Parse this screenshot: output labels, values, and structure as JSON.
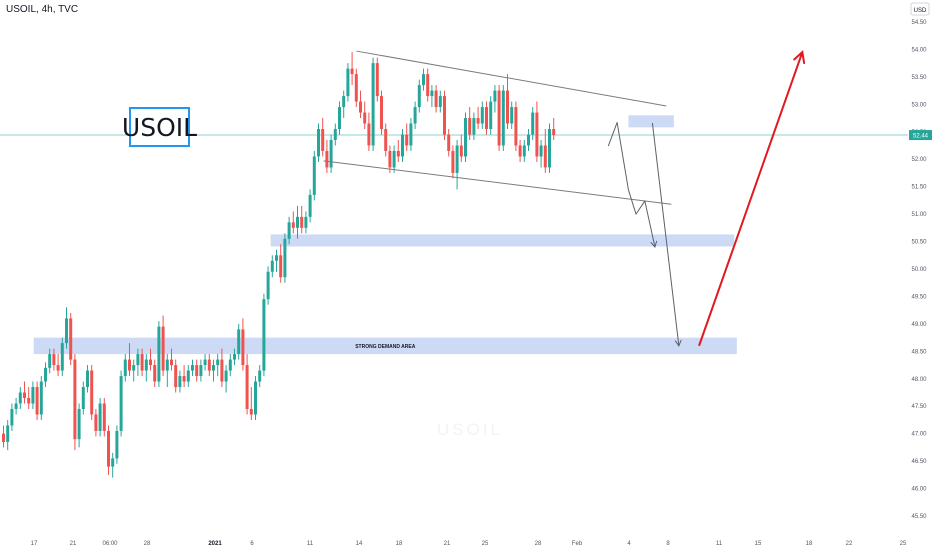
{
  "header": {
    "symbol_label": "USOIL, 4h, TVC"
  },
  "watermark": {
    "text": "USOIL"
  },
  "colors": {
    "up": "#26a69a",
    "down": "#ef5350",
    "zone": "#c6d6f5",
    "zone_dark": "#b7cbf3",
    "trendline": "#7b7b7b",
    "arrow_gray": "#5d606b",
    "arrow_red": "#e0191f",
    "price_line": "#8fd3cb",
    "price_badge": "#26a69a",
    "axis_text": "#505561"
  },
  "chart_data": {
    "type": "candlestick",
    "currency": "USD",
    "ylim": [
      45.1,
      54.9
    ],
    "y_ticks": [
      "54.50",
      "54.00",
      "53.50",
      "53.00",
      "52.50",
      "52.00",
      "51.50",
      "51.00",
      "50.50",
      "50.00",
      "49.50",
      "49.00",
      "48.50",
      "48.00",
      "47.50",
      "47.00",
      "46.50",
      "46.00",
      "45.50"
    ],
    "x_ticks": [
      "17",
      "21",
      "06:00",
      "28",
      "2021",
      "6",
      "11",
      "14",
      "18",
      "21",
      "25",
      "28",
      "Feb",
      "4",
      "8",
      "11",
      "15",
      "18",
      "22",
      "25"
    ],
    "last_price": "52.44",
    "bars_per_day": 6,
    "candles": [
      {
        "o": 47.0,
        "h": 47.15,
        "l": 46.75,
        "c": 46.85
      },
      {
        "o": 46.85,
        "h": 47.25,
        "l": 46.7,
        "c": 47.15
      },
      {
        "o": 47.15,
        "h": 47.55,
        "l": 47.05,
        "c": 47.45
      },
      {
        "o": 47.45,
        "h": 47.65,
        "l": 47.35,
        "c": 47.55
      },
      {
        "o": 47.55,
        "h": 47.85,
        "l": 47.45,
        "c": 47.75
      },
      {
        "o": 47.75,
        "h": 47.95,
        "l": 47.55,
        "c": 47.65
      },
      {
        "o": 47.65,
        "h": 47.85,
        "l": 47.45,
        "c": 47.55
      },
      {
        "o": 47.55,
        "h": 47.95,
        "l": 47.45,
        "c": 47.85
      },
      {
        "o": 47.85,
        "h": 47.95,
        "l": 47.25,
        "c": 47.35
      },
      {
        "o": 47.35,
        "h": 48.05,
        "l": 47.25,
        "c": 47.95
      },
      {
        "o": 47.95,
        "h": 48.3,
        "l": 47.85,
        "c": 48.2
      },
      {
        "o": 48.2,
        "h": 48.55,
        "l": 48.1,
        "c": 48.45
      },
      {
        "o": 48.45,
        "h": 48.55,
        "l": 48.15,
        "c": 48.25
      },
      {
        "o": 48.25,
        "h": 48.45,
        "l": 48.05,
        "c": 48.15
      },
      {
        "o": 48.15,
        "h": 48.75,
        "l": 48.05,
        "c": 48.65
      },
      {
        "o": 48.65,
        "h": 49.3,
        "l": 48.55,
        "c": 49.1
      },
      {
        "o": 49.1,
        "h": 49.2,
        "l": 48.25,
        "c": 48.35
      },
      {
        "o": 48.35,
        "h": 48.45,
        "l": 46.7,
        "c": 46.9
      },
      {
        "o": 46.9,
        "h": 47.55,
        "l": 46.75,
        "c": 47.45
      },
      {
        "o": 47.45,
        "h": 47.95,
        "l": 47.35,
        "c": 47.85
      },
      {
        "o": 47.85,
        "h": 48.25,
        "l": 47.75,
        "c": 48.15
      },
      {
        "o": 48.15,
        "h": 48.25,
        "l": 47.25,
        "c": 47.35
      },
      {
        "o": 47.35,
        "h": 47.45,
        "l": 46.95,
        "c": 47.05
      },
      {
        "o": 47.05,
        "h": 47.65,
        "l": 46.95,
        "c": 47.55
      },
      {
        "o": 47.55,
        "h": 47.65,
        "l": 46.95,
        "c": 47.05
      },
      {
        "o": 47.05,
        "h": 47.15,
        "l": 46.25,
        "c": 46.4
      },
      {
        "o": 46.4,
        "h": 46.65,
        "l": 46.2,
        "c": 46.55
      },
      {
        "o": 46.55,
        "h": 47.15,
        "l": 46.45,
        "c": 47.05
      },
      {
        "o": 47.05,
        "h": 48.15,
        "l": 46.95,
        "c": 48.05
      },
      {
        "o": 48.05,
        "h": 48.45,
        "l": 47.95,
        "c": 48.35
      },
      {
        "o": 48.35,
        "h": 48.65,
        "l": 48.05,
        "c": 48.15
      },
      {
        "o": 48.15,
        "h": 48.35,
        "l": 47.95,
        "c": 48.25
      },
      {
        "o": 48.25,
        "h": 48.55,
        "l": 48.05,
        "c": 48.45
      },
      {
        "o": 48.45,
        "h": 48.55,
        "l": 48.05,
        "c": 48.15
      },
      {
        "o": 48.15,
        "h": 48.45,
        "l": 47.95,
        "c": 48.35
      },
      {
        "o": 48.35,
        "h": 48.55,
        "l": 48.15,
        "c": 48.25
      },
      {
        "o": 48.25,
        "h": 48.35,
        "l": 47.85,
        "c": 47.95
      },
      {
        "o": 47.95,
        "h": 49.05,
        "l": 47.85,
        "c": 48.95
      },
      {
        "o": 48.95,
        "h": 49.15,
        "l": 48.05,
        "c": 48.15
      },
      {
        "o": 48.15,
        "h": 48.45,
        "l": 47.85,
        "c": 48.35
      },
      {
        "o": 48.35,
        "h": 48.55,
        "l": 48.15,
        "c": 48.25
      },
      {
        "o": 48.25,
        "h": 48.35,
        "l": 47.75,
        "c": 47.85
      },
      {
        "o": 47.85,
        "h": 48.15,
        "l": 47.75,
        "c": 48.05
      },
      {
        "o": 48.05,
        "h": 48.25,
        "l": 47.85,
        "c": 47.95
      },
      {
        "o": 47.95,
        "h": 48.25,
        "l": 47.85,
        "c": 48.15
      },
      {
        "o": 48.15,
        "h": 48.35,
        "l": 48.05,
        "c": 48.25
      },
      {
        "o": 48.25,
        "h": 48.35,
        "l": 47.95,
        "c": 48.05
      },
      {
        "o": 48.05,
        "h": 48.35,
        "l": 47.95,
        "c": 48.25
      },
      {
        "o": 48.25,
        "h": 48.45,
        "l": 48.15,
        "c": 48.35
      },
      {
        "o": 48.35,
        "h": 48.45,
        "l": 48.05,
        "c": 48.15
      },
      {
        "o": 48.15,
        "h": 48.35,
        "l": 47.95,
        "c": 48.25
      },
      {
        "o": 48.25,
        "h": 48.45,
        "l": 48.05,
        "c": 48.35
      },
      {
        "o": 48.35,
        "h": 48.55,
        "l": 47.85,
        "c": 47.95
      },
      {
        "o": 47.95,
        "h": 48.25,
        "l": 47.75,
        "c": 48.15
      },
      {
        "o": 48.15,
        "h": 48.45,
        "l": 48.05,
        "c": 48.35
      },
      {
        "o": 48.35,
        "h": 48.55,
        "l": 48.25,
        "c": 48.45
      },
      {
        "o": 48.45,
        "h": 49.0,
        "l": 48.35,
        "c": 48.9
      },
      {
        "o": 48.9,
        "h": 49.1,
        "l": 48.15,
        "c": 48.25
      },
      {
        "o": 48.25,
        "h": 48.45,
        "l": 47.35,
        "c": 47.45
      },
      {
        "o": 47.45,
        "h": 47.85,
        "l": 47.25,
        "c": 47.35
      },
      {
        "o": 47.35,
        "h": 48.05,
        "l": 47.25,
        "c": 47.95
      },
      {
        "o": 47.95,
        "h": 48.25,
        "l": 47.85,
        "c": 48.15
      },
      {
        "o": 48.15,
        "h": 49.55,
        "l": 48.05,
        "c": 49.45
      },
      {
        "o": 49.45,
        "h": 50.05,
        "l": 49.35,
        "c": 49.95
      },
      {
        "o": 49.95,
        "h": 50.25,
        "l": 49.85,
        "c": 50.15
      },
      {
        "o": 50.15,
        "h": 50.35,
        "l": 49.95,
        "c": 50.25
      },
      {
        "o": 50.25,
        "h": 50.45,
        "l": 49.75,
        "c": 49.85
      },
      {
        "o": 49.85,
        "h": 50.65,
        "l": 49.75,
        "c": 50.55
      },
      {
        "o": 50.55,
        "h": 50.95,
        "l": 50.45,
        "c": 50.85
      },
      {
        "o": 50.85,
        "h": 51.05,
        "l": 50.65,
        "c": 50.75
      },
      {
        "o": 50.75,
        "h": 51.15,
        "l": 50.55,
        "c": 50.95
      },
      {
        "o": 50.95,
        "h": 51.15,
        "l": 50.65,
        "c": 50.75
      },
      {
        "o": 50.75,
        "h": 51.05,
        "l": 50.65,
        "c": 50.95
      },
      {
        "o": 50.95,
        "h": 51.45,
        "l": 50.85,
        "c": 51.35
      },
      {
        "o": 51.35,
        "h": 52.15,
        "l": 51.25,
        "c": 52.05
      },
      {
        "o": 52.05,
        "h": 52.65,
        "l": 51.95,
        "c": 52.55
      },
      {
        "o": 52.55,
        "h": 52.75,
        "l": 52.05,
        "c": 52.15
      },
      {
        "o": 52.15,
        "h": 52.35,
        "l": 51.75,
        "c": 51.85
      },
      {
        "o": 51.85,
        "h": 52.45,
        "l": 51.75,
        "c": 52.35
      },
      {
        "o": 52.35,
        "h": 52.65,
        "l": 52.25,
        "c": 52.55
      },
      {
        "o": 52.55,
        "h": 53.05,
        "l": 52.45,
        "c": 52.95
      },
      {
        "o": 52.95,
        "h": 53.25,
        "l": 52.75,
        "c": 53.15
      },
      {
        "o": 53.15,
        "h": 53.75,
        "l": 53.05,
        "c": 53.65
      },
      {
        "o": 53.65,
        "h": 53.95,
        "l": 53.35,
        "c": 53.55
      },
      {
        "o": 53.55,
        "h": 53.65,
        "l": 52.95,
        "c": 53.05
      },
      {
        "o": 53.05,
        "h": 53.25,
        "l": 52.75,
        "c": 52.85
      },
      {
        "o": 52.85,
        "h": 53.05,
        "l": 52.55,
        "c": 52.65
      },
      {
        "o": 52.65,
        "h": 52.85,
        "l": 52.15,
        "c": 52.25
      },
      {
        "o": 52.25,
        "h": 53.85,
        "l": 52.15,
        "c": 53.75
      },
      {
        "o": 53.75,
        "h": 53.85,
        "l": 53.05,
        "c": 53.15
      },
      {
        "o": 53.15,
        "h": 53.25,
        "l": 52.45,
        "c": 52.55
      },
      {
        "o": 52.55,
        "h": 52.65,
        "l": 52.05,
        "c": 52.15
      },
      {
        "o": 52.15,
        "h": 52.25,
        "l": 51.75,
        "c": 51.85
      },
      {
        "o": 51.85,
        "h": 52.25,
        "l": 51.75,
        "c": 52.15
      },
      {
        "o": 52.15,
        "h": 52.35,
        "l": 51.95,
        "c": 52.05
      },
      {
        "o": 52.05,
        "h": 52.55,
        "l": 51.95,
        "c": 52.45
      },
      {
        "o": 52.45,
        "h": 52.65,
        "l": 52.15,
        "c": 52.25
      },
      {
        "o": 52.25,
        "h": 52.75,
        "l": 52.15,
        "c": 52.65
      },
      {
        "o": 52.65,
        "h": 53.05,
        "l": 52.55,
        "c": 52.95
      },
      {
        "o": 52.95,
        "h": 53.45,
        "l": 52.85,
        "c": 53.35
      },
      {
        "o": 53.35,
        "h": 53.65,
        "l": 53.25,
        "c": 53.55
      },
      {
        "o": 53.55,
        "h": 53.65,
        "l": 53.05,
        "c": 53.15
      },
      {
        "o": 53.15,
        "h": 53.35,
        "l": 52.95,
        "c": 53.25
      },
      {
        "o": 53.25,
        "h": 53.35,
        "l": 52.85,
        "c": 52.95
      },
      {
        "o": 52.95,
        "h": 53.25,
        "l": 52.85,
        "c": 53.15
      },
      {
        "o": 53.15,
        "h": 53.25,
        "l": 52.35,
        "c": 52.45
      },
      {
        "o": 52.45,
        "h": 52.55,
        "l": 52.05,
        "c": 52.15
      },
      {
        "o": 52.15,
        "h": 52.25,
        "l": 51.65,
        "c": 51.75
      },
      {
        "o": 51.75,
        "h": 52.35,
        "l": 51.45,
        "c": 52.25
      },
      {
        "o": 52.25,
        "h": 52.45,
        "l": 51.95,
        "c": 52.05
      },
      {
        "o": 52.05,
        "h": 52.85,
        "l": 51.95,
        "c": 52.75
      },
      {
        "o": 52.75,
        "h": 52.95,
        "l": 52.35,
        "c": 52.45
      },
      {
        "o": 52.45,
        "h": 52.85,
        "l": 52.35,
        "c": 52.75
      },
      {
        "o": 52.75,
        "h": 52.95,
        "l": 52.55,
        "c": 52.65
      },
      {
        "o": 52.65,
        "h": 53.05,
        "l": 52.55,
        "c": 52.95
      },
      {
        "o": 52.95,
        "h": 53.05,
        "l": 52.45,
        "c": 52.55
      },
      {
        "o": 52.55,
        "h": 53.15,
        "l": 52.45,
        "c": 53.05
      },
      {
        "o": 53.05,
        "h": 53.35,
        "l": 52.85,
        "c": 53.25
      },
      {
        "o": 53.25,
        "h": 53.35,
        "l": 52.15,
        "c": 52.25
      },
      {
        "o": 52.25,
        "h": 53.35,
        "l": 52.15,
        "c": 53.25
      },
      {
        "o": 53.25,
        "h": 53.55,
        "l": 52.55,
        "c": 52.65
      },
      {
        "o": 52.65,
        "h": 53.05,
        "l": 52.55,
        "c": 52.95
      },
      {
        "o": 52.95,
        "h": 53.05,
        "l": 52.15,
        "c": 52.25
      },
      {
        "o": 52.25,
        "h": 52.35,
        "l": 51.95,
        "c": 52.05
      },
      {
        "o": 52.05,
        "h": 52.35,
        "l": 51.95,
        "c": 52.25
      },
      {
        "o": 52.25,
        "h": 52.55,
        "l": 52.15,
        "c": 52.45
      },
      {
        "o": 52.45,
        "h": 52.95,
        "l": 52.35,
        "c": 52.85
      },
      {
        "o": 52.85,
        "h": 53.05,
        "l": 51.95,
        "c": 52.05
      },
      {
        "o": 52.05,
        "h": 52.35,
        "l": 51.85,
        "c": 52.25
      },
      {
        "o": 52.25,
        "h": 52.55,
        "l": 51.75,
        "c": 51.85
      },
      {
        "o": 51.85,
        "h": 52.65,
        "l": 51.75,
        "c": 52.55
      },
      {
        "o": 52.55,
        "h": 52.75,
        "l": 52.35,
        "c": 52.44
      }
    ],
    "channel": {
      "upper": [
        [
          14.0,
          53.97
        ],
        [
          26.3,
          52.97
        ]
      ],
      "lower": [
        [
          12.7,
          51.97
        ],
        [
          26.5,
          51.18
        ]
      ]
    },
    "zones": [
      {
        "name": "resistance-zone",
        "x0": 24.8,
        "x1": 26.6,
        "y0": 52.58,
        "y1": 52.8,
        "label": ""
      },
      {
        "name": "support-zone",
        "x0": 10.6,
        "x1": 29.0,
        "y0": 50.41,
        "y1": 50.63,
        "label": ""
      },
      {
        "name": "demand-zone",
        "x0": 1.2,
        "x1": 29.1,
        "y0": 48.45,
        "y1": 48.75,
        "label": "STRONG DEMAND AREA"
      }
    ],
    "path_arrows": [
      {
        "name": "projection-arrow-short",
        "color": "gray",
        "points": [
          [
            24.0,
            52.24
          ],
          [
            24.35,
            52.67
          ],
          [
            24.8,
            51.44
          ],
          [
            25.1,
            51.0
          ],
          [
            25.45,
            51.24
          ],
          [
            25.85,
            50.4
          ]
        ]
      },
      {
        "name": "projection-arrow-long",
        "color": "gray",
        "points": [
          [
            25.75,
            52.66
          ],
          [
            26.8,
            48.6
          ]
        ]
      },
      {
        "name": "target-arrow",
        "color": "red",
        "points": [
          [
            27.6,
            48.6
          ],
          [
            31.7,
            53.95
          ]
        ]
      }
    ]
  }
}
